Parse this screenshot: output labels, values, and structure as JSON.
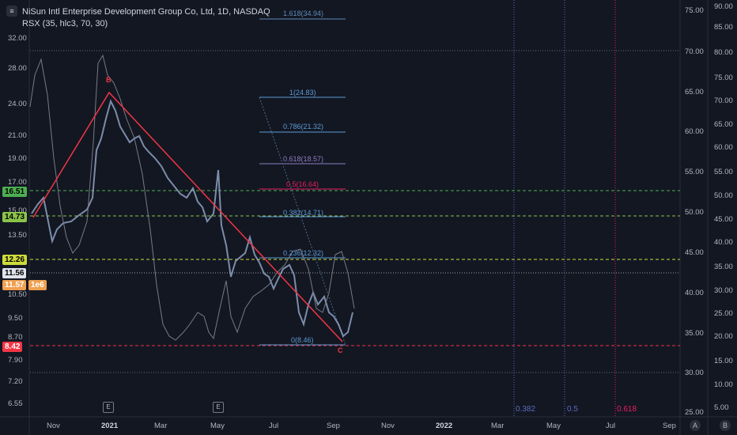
{
  "header": {
    "logo_glyph": "≡",
    "title": "NiSun Intl Enterprise Development Group Co, Ltd, 1D, NASDAQ",
    "indicator": "RSX (35, hlc3, 70, 30)"
  },
  "price_axis": {
    "ticks": [
      "32.00",
      "28.00",
      "24.00",
      "21.00",
      "19.00",
      "17.00",
      "15.00",
      "13.50",
      "10.50",
      "9.50",
      "8.70",
      "7.90",
      "7.20",
      "6.55"
    ]
  },
  "badges": [
    {
      "text": "16.51",
      "bg": "#4caf50"
    },
    {
      "text": "14.73",
      "bg": "#8bc34a"
    },
    {
      "text": "12.26",
      "bg": "#cddc39"
    },
    {
      "text": "11.56",
      "bg": "#e0e3eb"
    },
    {
      "text": "11.57",
      "bg": "#f0a050"
    },
    {
      "text": "8.42",
      "bg": "#f23645"
    }
  ],
  "badge_extra": "1e6",
  "rsx_axis_inner": [
    "75.00",
    "70.00",
    "65.00",
    "60.00",
    "55.00",
    "50.00",
    "45.00",
    "40.00",
    "35.00",
    "30.00",
    "25.00"
  ],
  "rsx_axis_outer": [
    "90.00",
    "85.00",
    "80.00",
    "75.00",
    "70.00",
    "65.00",
    "60.00",
    "55.00",
    "50.00",
    "45.00",
    "40.00",
    "35.00",
    "30.00",
    "25.00",
    "20.00",
    "15.00",
    "10.00",
    "5.00"
  ],
  "x_axis": [
    "Nov",
    "2021",
    "Mar",
    "May",
    "Jul",
    "Sep",
    "Nov",
    "2022",
    "Mar",
    "May",
    "Jul",
    "Sep"
  ],
  "fib_levels": [
    {
      "label": "1.618(34.94)",
      "color": "#5d8ab8"
    },
    {
      "label": "1(24.83)",
      "color": "#5b9bd5"
    },
    {
      "label": "0.786(21.32)",
      "color": "#5b9bd5"
    },
    {
      "label": "0.618(18.57)",
      "color": "#8e7cc3"
    },
    {
      "label": "0.5(16.64)",
      "color": "#e91e63"
    },
    {
      "label": "0.382(14.71)",
      "color": "#5b9bd5"
    },
    {
      "label": "0.236(12.32)",
      "color": "#5b9bd5"
    },
    {
      "label": "0(8.46)",
      "color": "#5b9bd5"
    }
  ],
  "time_zones": [
    {
      "label": "0.382",
      "color": "#5c6bc0"
    },
    {
      "label": "0.5",
      "color": "#5c6bc0"
    },
    {
      "label": "0.618",
      "color": "#e91e63"
    }
  ],
  "earnings_marks": [
    "E",
    "E"
  ],
  "wave_labels": [
    "B",
    "C"
  ],
  "corner_buttons": [
    "A",
    "B"
  ],
  "colors": {
    "background": "#131722",
    "candle": "#9fb6d8",
    "rsx_line": "#787b86",
    "abc_line": "#f23645",
    "green_dash": "#4caf50",
    "lime_dash": "#8bc34a",
    "yellow_dash": "#cddc39",
    "red_dash": "#f23645"
  }
}
